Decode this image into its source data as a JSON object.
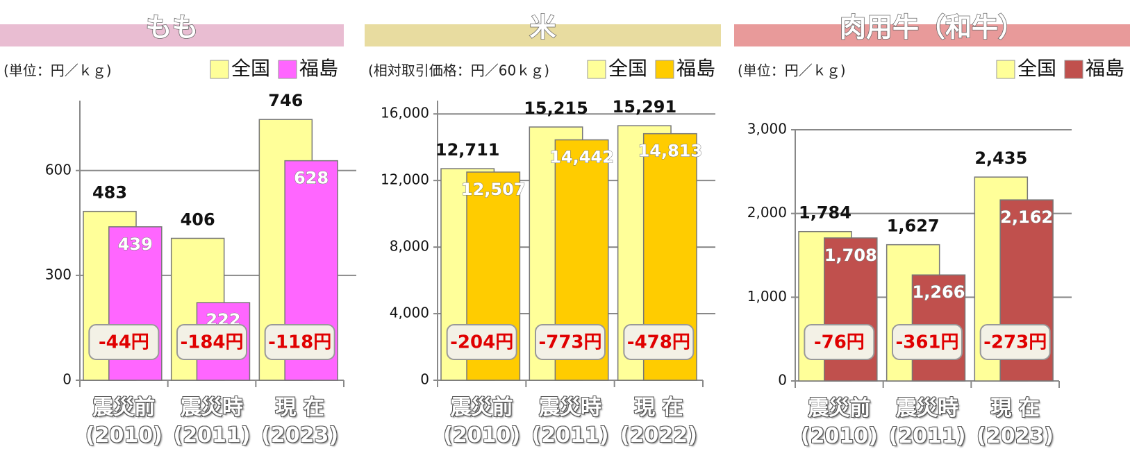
{
  "chart_data": [
    {
      "type": "bar",
      "title": "もも",
      "unit_label": "(単位：円／ｋｇ)",
      "categories": [
        "震災前\n(2010)",
        "震災時\n(2011)",
        "現 在\n(2023)"
      ],
      "series": [
        {
          "name": "全国",
          "color": "#ffff99",
          "values": [
            483,
            406,
            746
          ]
        },
        {
          "name": "福島",
          "color": "#ff66ff",
          "values": [
            439,
            222,
            628
          ]
        }
      ],
      "annotations": [
        "-44円",
        "-184円",
        "-118円"
      ],
      "ylim": [
        0,
        800
      ],
      "yticks": [
        0,
        300,
        600
      ],
      "grid": true,
      "legend": "top-right",
      "title_color": "#e9bdd2"
    },
    {
      "type": "bar",
      "title": "米",
      "unit_label": "(相対取引価格：円／60ｋｇ)",
      "categories": [
        "震災前\n(2010)",
        "震災時\n(2011)",
        "現 在\n(2022)"
      ],
      "series": [
        {
          "name": "全国",
          "color": "#ffff99",
          "values": [
            12711,
            15215,
            15291
          ],
          "value_labels": [
            "12,711",
            "15,215",
            "15,291"
          ]
        },
        {
          "name": "福島",
          "color": "#ffcc00",
          "values": [
            12507,
            14442,
            14813
          ],
          "value_labels": [
            "12,507",
            "14,442",
            "14,813"
          ]
        }
      ],
      "annotations": [
        "-204円",
        "-773円",
        "-478円"
      ],
      "ylim": [
        0,
        16800
      ],
      "yticks": [
        0,
        {
          "value": 4000,
          "label": "4,000"
        },
        {
          "value": 8000,
          "label": "8,000"
        },
        {
          "value": 12000,
          "label": "12,000"
        },
        {
          "value": 16000,
          "label": "16,000"
        }
      ],
      "grid": true,
      "legend": "top-right",
      "title_color": "#e8dca0"
    },
    {
      "type": "bar",
      "title": "肉用牛（和牛）",
      "unit_label": "(単位：円／ｋｇ)",
      "categories": [
        "震災前\n(2010)",
        "震災時\n(2011)",
        "現 在\n(2023)"
      ],
      "series": [
        {
          "name": "全国",
          "color": "#ffff99",
          "values": [
            1784,
            1627,
            2435
          ],
          "value_labels": [
            "1,784",
            "1,627",
            "2,435"
          ]
        },
        {
          "name": "福島",
          "color": "#c0504d",
          "values": [
            1708,
            1266,
            2162
          ],
          "value_labels": [
            "1,708",
            "1,266",
            "2,162"
          ]
        }
      ],
      "annotations": [
        "-76円",
        "-361円",
        "-273円"
      ],
      "ylim": [
        0,
        3000
      ],
      "yticks": [
        0,
        {
          "value": 1000,
          "label": "1,000"
        },
        {
          "value": 2000,
          "label": "2,000"
        },
        {
          "value": 3000,
          "label": "3,000"
        }
      ],
      "grid": true,
      "legend": "top-right",
      "title_color": "#e89a9a"
    }
  ]
}
